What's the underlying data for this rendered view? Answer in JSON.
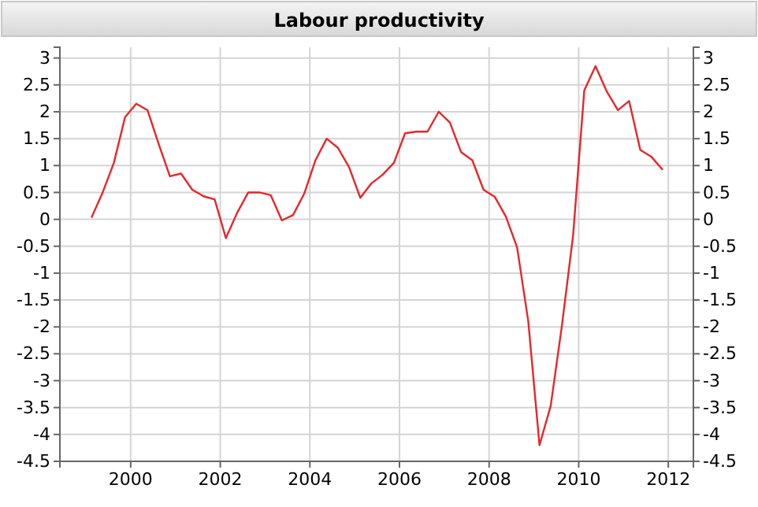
{
  "chart_data": {
    "type": "line",
    "title": "Labour productivity",
    "x": [
      1999.125,
      1999.375,
      1999.625,
      1999.875,
      2000.125,
      2000.375,
      2000.625,
      2000.875,
      2001.125,
      2001.375,
      2001.625,
      2001.875,
      2002.125,
      2002.375,
      2002.625,
      2002.875,
      2003.125,
      2003.375,
      2003.625,
      2003.875,
      2004.125,
      2004.375,
      2004.625,
      2004.875,
      2005.125,
      2005.375,
      2005.625,
      2005.875,
      2006.125,
      2006.375,
      2006.625,
      2006.875,
      2007.125,
      2007.375,
      2007.625,
      2007.875,
      2008.125,
      2008.375,
      2008.625,
      2008.875,
      2009.125,
      2009.375,
      2009.625,
      2009.875,
      2010.125,
      2010.375,
      2010.625,
      2010.875,
      2011.125,
      2011.375,
      2011.625,
      2011.875
    ],
    "series": [
      {
        "color": "#e8262b",
        "values": [
          0.03,
          0.5,
          1.05,
          1.9,
          2.15,
          2.03,
          1.4,
          0.8,
          0.85,
          0.55,
          0.43,
          0.37,
          -0.35,
          0.12,
          0.5,
          0.5,
          0.45,
          -0.02,
          0.08,
          0.48,
          1.1,
          1.5,
          1.33,
          0.97,
          0.4,
          0.67,
          0.83,
          1.05,
          1.6,
          1.63,
          1.63,
          2.0,
          1.8,
          1.25,
          1.1,
          0.55,
          0.42,
          0.05,
          -0.52,
          -1.9,
          -4.2,
          -3.47,
          -1.98,
          -0.3,
          2.4,
          2.85,
          2.38,
          2.03,
          2.2,
          1.29,
          1.16,
          0.92
        ]
      }
    ],
    "xlim": [
      1998.42,
      2012.56
    ],
    "xticks": [
      2000,
      2002,
      2004,
      2006,
      2008,
      2010,
      2012
    ],
    "ylim": [
      -4.5,
      3.2
    ],
    "yticks": [
      -4.5,
      -4,
      -3.5,
      -3,
      -2.5,
      -2,
      -1.5,
      -1,
      -0.5,
      0,
      0.5,
      1,
      1.5,
      2,
      2.5,
      3
    ],
    "y2lim": [
      -4.5,
      3.2
    ],
    "y2ticks": [
      -4.5,
      -4,
      -3.5,
      -3,
      -2.5,
      -2,
      -1.5,
      -1,
      -0.5,
      0,
      0.5,
      1,
      1.5,
      2,
      2.5,
      3
    ],
    "grid": true,
    "marker": "none",
    "line_style": "solid"
  }
}
